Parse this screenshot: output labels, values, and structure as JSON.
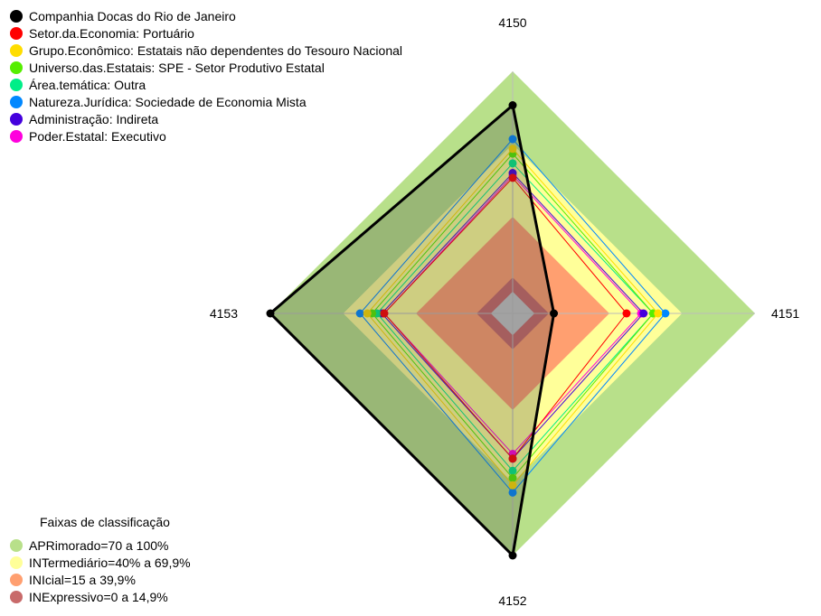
{
  "chart_data": {
    "type": "radar",
    "axes": [
      "4150",
      "4151",
      "4152",
      "4153"
    ],
    "range": [
      0,
      100
    ],
    "bands": {
      "title": "Faixas de classificação",
      "items": [
        {
          "label": "APRimorado=70 a 100%",
          "from": 70,
          "to": 100,
          "color": "#b8e08a"
        },
        {
          "label": "INTermediário=40% a 69,9%",
          "from": 40,
          "to": 69.9,
          "color": "#ffff99"
        },
        {
          "label": "INIcial=15 a 39,9%",
          "from": 15,
          "to": 39.9,
          "color": "#ff9f70"
        },
        {
          "label": "INExpressivo=0 a 14,9%",
          "from": 0,
          "to": 14.9,
          "color": "#c86a6a"
        }
      ]
    },
    "series": [
      {
        "name": "Companhia Docas do Rio de Janeiro",
        "color": "#000000",
        "values": [
          86,
          17,
          100,
          100
        ]
      },
      {
        "name": "Setor.da.Economia: Portuário",
        "color": "#ff0000",
        "values": [
          56,
          47,
          60,
          53
        ]
      },
      {
        "name": "Grupo.Econômico: Estatais não dependentes do Tesouro Nacional",
        "color": "#ffdd00",
        "values": [
          68,
          60,
          71,
          60
        ]
      },
      {
        "name": "Universo.das.Estatais: SPE - Setor Produtivo Estatal",
        "color": "#55ee00",
        "values": [
          66,
          58,
          68,
          58
        ]
      },
      {
        "name": "Área.temática: Outra",
        "color": "#00ee88",
        "values": [
          62,
          58,
          65,
          56
        ]
      },
      {
        "name": "Natureza.Jurídica: Sociedade de Economia Mista",
        "color": "#0088ff",
        "values": [
          72,
          63,
          74,
          63
        ]
      },
      {
        "name": "Administração: Indireta",
        "color": "#4400dd",
        "values": [
          58,
          54,
          60,
          54
        ]
      },
      {
        "name": "Poder.Estatal: Executivo",
        "color": "#ff00dd",
        "values": [
          57,
          53,
          58,
          53
        ]
      }
    ]
  }
}
